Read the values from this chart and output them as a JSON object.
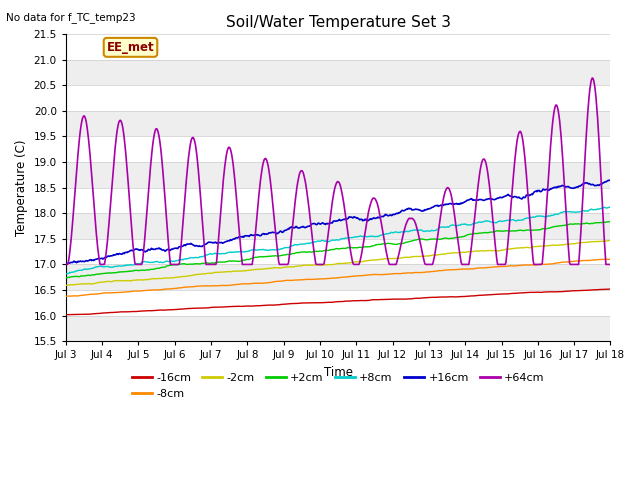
{
  "title": "Soil/Water Temperature Set 3",
  "xlabel": "Time",
  "ylabel": "Temperature (C)",
  "top_left_text": "No data for f_TC_temp23",
  "annotation_text": "EE_met",
  "ylim": [
    15.5,
    21.5
  ],
  "xlim": [
    0,
    15
  ],
  "x_tick_labels": [
    "Jul 3",
    "Jul 4",
    "Jul 5",
    "Jul 6",
    "Jul 7",
    "Jul 8",
    "Jul 9",
    "Jul 10",
    "Jul 11",
    "Jul 12",
    "Jul 13",
    "Jul 14",
    "Jul 15",
    "Jul 16",
    "Jul 17",
    "Jul 18"
  ],
  "series_colors": {
    "-16cm": "#cc0000",
    "-8cm": "#ff8800",
    "-2cm": "#cccc00",
    "+2cm": "#00cc00",
    "+8cm": "#00cccc",
    "+16cm": "#0000cc",
    "+64cm": "#aa00aa"
  },
  "legend_labels": [
    "-16cm",
    "-8cm",
    "-2cm",
    "+2cm",
    "+8cm",
    "+16cm",
    "+64cm"
  ],
  "background_color": "#ffffff",
  "plot_bg_color": "#ffffff",
  "grid_color": "#dddddd",
  "annotation_bg": "#ffffcc",
  "annotation_border": "#cc8800",
  "figsize": [
    6.4,
    4.8
  ],
  "dpi": 100
}
